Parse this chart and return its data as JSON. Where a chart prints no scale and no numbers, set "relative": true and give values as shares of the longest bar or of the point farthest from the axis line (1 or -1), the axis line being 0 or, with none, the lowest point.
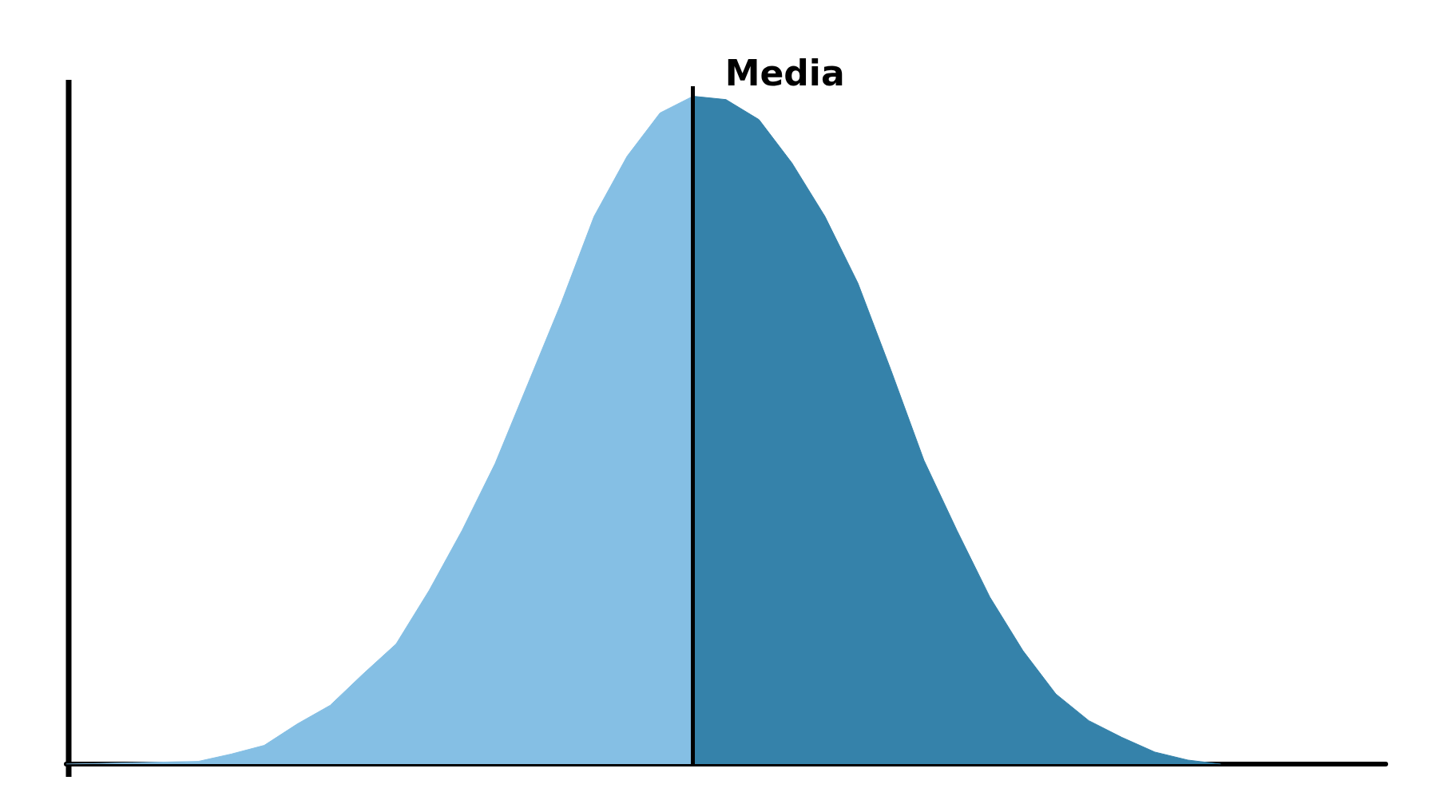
{
  "chart_data": {
    "type": "area",
    "relative": true,
    "categories": [
      null,
      null,
      null,
      null,
      null,
      null,
      null,
      null,
      null,
      null,
      null,
      null,
      null,
      null,
      null,
      null,
      null,
      null,
      null,
      null,
      null,
      null,
      null,
      null,
      null,
      null,
      null,
      null,
      null,
      null,
      null,
      null,
      null,
      null,
      null,
      null,
      null,
      null,
      null,
      null,
      null
    ],
    "series": [
      {
        "color": "#85bfe4",
        "values": [
          0,
          0.001,
          0.002,
          0.003,
          0.004,
          0.015,
          0.028,
          0.06,
          0.088,
          0.135,
          0.18,
          0.26,
          0.35,
          0.45,
          0.57,
          0.69,
          0.82,
          0.91,
          0.975,
          1.0,
          null,
          null,
          null,
          null,
          null,
          null,
          null,
          null,
          null,
          null,
          null,
          null,
          null,
          null,
          null,
          null,
          null,
          null,
          null,
          null,
          null
        ]
      },
      {
        "color": "#3582aa",
        "values": [
          null,
          null,
          null,
          null,
          null,
          null,
          null,
          null,
          null,
          null,
          null,
          null,
          null,
          null,
          null,
          null,
          null,
          null,
          null,
          1.0,
          0.995,
          0.965,
          0.9,
          0.82,
          0.72,
          0.59,
          0.455,
          0.35,
          0.25,
          0.17,
          0.105,
          0.065,
          0.04,
          0.018,
          0.006,
          0,
          null,
          null,
          null,
          null,
          null
        ]
      }
    ],
    "ref_lines": [
      {
        "axis": "x",
        "label": "Media"
      }
    ]
  }
}
